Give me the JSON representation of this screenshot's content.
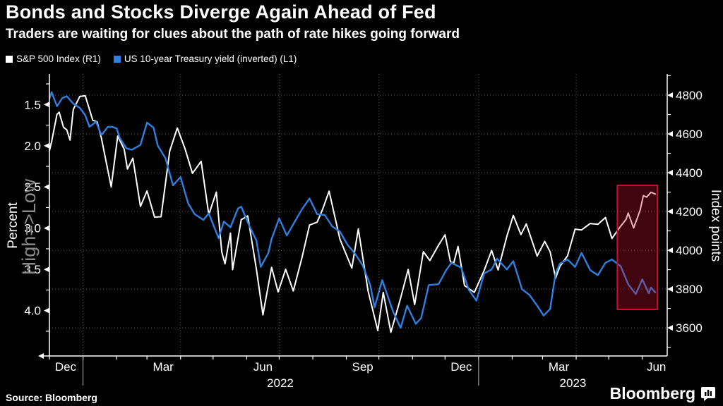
{
  "header": {
    "title": "Bonds and Stocks Diverge Again Ahead of Fed",
    "subtitle": "Traders are waiting for clues about the path of rate hikes going forward"
  },
  "legend": {
    "items": [
      {
        "label": "S&P 500 Index (R1)",
        "color": "#ffffff"
      },
      {
        "label": "US 10-year Treasury yield (inverted) (L1)",
        "color": "#2e7fe0"
      }
    ]
  },
  "chart_data": {
    "type": "line",
    "title": "Bonds and Stocks Diverge Again Ahead of Fed",
    "x_domain": {
      "start": "2021-12-01",
      "end": "2023-06-24"
    },
    "grid": {
      "color": "#5a5a5a",
      "horizontal_at_right_ticks": true,
      "vertical_dates": [
        "2022-01-01",
        "2022-04-01",
        "2022-07-01",
        "2022-10-01",
        "2023-01-01",
        "2023-04-01"
      ]
    },
    "left_axis": {
      "label": "Percent",
      "secondary_label": "High=>Low",
      "secondary_label_color": "#8a8a8a",
      "inverted": true,
      "unit": "percent",
      "value_at_top": 1.13,
      "value_at_bottom": 4.55,
      "major_ticks": [
        1.5,
        2.0,
        2.5,
        3.0,
        3.5,
        4.0
      ],
      "minor_ticks": [
        1.25,
        1.75,
        2.25,
        2.75,
        3.25,
        3.75,
        4.25
      ]
    },
    "right_axis": {
      "label": "Index points",
      "unit": "index points",
      "value_at_top": 4909,
      "value_at_bottom": 3455,
      "major_ticks": [
        4800,
        4600,
        4400,
        4200,
        4000,
        3800,
        3600
      ],
      "minor_ticks": [
        4900,
        4700,
        4500,
        4300,
        4100,
        3900,
        3700,
        3500
      ]
    },
    "x_axis": {
      "month_labels": [
        {
          "label": "Dec",
          "date": "2021-12-16"
        },
        {
          "label": "Mar",
          "date": "2022-03-16"
        },
        {
          "label": "Jun",
          "date": "2022-06-16"
        },
        {
          "label": "Sep",
          "date": "2022-09-16"
        },
        {
          "label": "Dec",
          "date": "2022-12-16"
        },
        {
          "label": "Mar",
          "date": "2023-03-16"
        },
        {
          "label": "Jun",
          "date": "2023-06-14"
        }
      ],
      "year_labels": [
        {
          "label": "2022",
          "date": "2022-07-02"
        },
        {
          "label": "2023",
          "date": "2023-03-29"
        }
      ],
      "year_divider_dates": [
        "2022-01-01",
        "2023-01-01"
      ]
    },
    "highlight": {
      "x_start": "2023-05-09",
      "x_end": "2023-06-15",
      "top_value": 4335,
      "bottom_value": 3695,
      "color": "#c8102e",
      "fill_opacity": 0.32
    },
    "series": [
      {
        "name": "S&P 500 Index",
        "axis": "right",
        "color": "#ffffff",
        "width": 2,
        "points": [
          [
            "2021-12-01",
            4513
          ],
          [
            "2021-12-03",
            4560
          ],
          [
            "2021-12-08",
            4701
          ],
          [
            "2021-12-10",
            4712
          ],
          [
            "2021-12-14",
            4634
          ],
          [
            "2021-12-17",
            4621
          ],
          [
            "2021-12-20",
            4568
          ],
          [
            "2021-12-23",
            4726
          ],
          [
            "2021-12-29",
            4793
          ],
          [
            "2022-01-03",
            4797
          ],
          [
            "2022-01-10",
            4670
          ],
          [
            "2022-01-14",
            4663
          ],
          [
            "2022-01-18",
            4577
          ],
          [
            "2022-01-24",
            4410
          ],
          [
            "2022-01-27",
            4327
          ],
          [
            "2022-02-02",
            4589
          ],
          [
            "2022-02-08",
            4521
          ],
          [
            "2022-02-11",
            4419
          ],
          [
            "2022-02-16",
            4475
          ],
          [
            "2022-02-23",
            4226
          ],
          [
            "2022-03-01",
            4306
          ],
          [
            "2022-03-08",
            4171
          ],
          [
            "2022-03-14",
            4173
          ],
          [
            "2022-03-22",
            4512
          ],
          [
            "2022-03-29",
            4631
          ],
          [
            "2022-04-05",
            4525
          ],
          [
            "2022-04-12",
            4397
          ],
          [
            "2022-04-20",
            4459
          ],
          [
            "2022-04-27",
            4184
          ],
          [
            "2022-05-04",
            4300
          ],
          [
            "2022-05-09",
            3991
          ],
          [
            "2022-05-12",
            3930
          ],
          [
            "2022-05-17",
            4089
          ],
          [
            "2022-05-19",
            3900
          ],
          [
            "2022-05-27",
            4158
          ],
          [
            "2022-06-02",
            4177
          ],
          [
            "2022-06-10",
            3901
          ],
          [
            "2022-06-16",
            3667
          ],
          [
            "2022-06-24",
            3912
          ],
          [
            "2022-06-30",
            3785
          ],
          [
            "2022-07-07",
            3902
          ],
          [
            "2022-07-14",
            3790
          ],
          [
            "2022-07-22",
            3962
          ],
          [
            "2022-07-29",
            4130
          ],
          [
            "2022-08-05",
            4145
          ],
          [
            "2022-08-10",
            4210
          ],
          [
            "2022-08-16",
            4305
          ],
          [
            "2022-08-26",
            4058
          ],
          [
            "2022-09-06",
            3908
          ],
          [
            "2022-09-12",
            4110
          ],
          [
            "2022-09-21",
            3790
          ],
          [
            "2022-09-30",
            3586
          ],
          [
            "2022-10-05",
            3783
          ],
          [
            "2022-10-12",
            3577
          ],
          [
            "2022-10-21",
            3753
          ],
          [
            "2022-10-28",
            3901
          ],
          [
            "2022-11-03",
            3720
          ],
          [
            "2022-11-11",
            3993
          ],
          [
            "2022-11-17",
            3947
          ],
          [
            "2022-11-25",
            4026
          ],
          [
            "2022-12-01",
            4080
          ],
          [
            "2022-12-06",
            3941
          ],
          [
            "2022-12-09",
            3934
          ],
          [
            "2022-12-13",
            4020
          ],
          [
            "2022-12-19",
            3818
          ],
          [
            "2022-12-28",
            3783
          ],
          [
            "2023-01-06",
            3895
          ],
          [
            "2023-01-13",
            3999
          ],
          [
            "2023-01-19",
            3898
          ],
          [
            "2023-01-27",
            4071
          ],
          [
            "2023-02-02",
            4180
          ],
          [
            "2023-02-09",
            4081
          ],
          [
            "2023-02-14",
            4136
          ],
          [
            "2023-02-24",
            3970
          ],
          [
            "2023-03-03",
            4046
          ],
          [
            "2023-03-08",
            3992
          ],
          [
            "2023-03-13",
            3856
          ],
          [
            "2023-03-17",
            3917
          ],
          [
            "2023-03-24",
            3971
          ],
          [
            "2023-03-31",
            4109
          ],
          [
            "2023-04-06",
            4105
          ],
          [
            "2023-04-14",
            4138
          ],
          [
            "2023-04-21",
            4134
          ],
          [
            "2023-04-28",
            4169
          ],
          [
            "2023-05-04",
            4061
          ],
          [
            "2023-05-12",
            4124
          ],
          [
            "2023-05-17",
            4159
          ],
          [
            "2023-05-19",
            4192
          ],
          [
            "2023-05-24",
            4115
          ],
          [
            "2023-05-30",
            4206
          ],
          [
            "2023-06-02",
            4282
          ],
          [
            "2023-06-05",
            4274
          ],
          [
            "2023-06-09",
            4299
          ],
          [
            "2023-06-13",
            4290
          ]
        ]
      },
      {
        "name": "US 10-year Treasury yield (inverted)",
        "axis": "left",
        "color": "#2e7fe0",
        "width": 2.4,
        "points": [
          [
            "2021-12-01",
            1.43
          ],
          [
            "2021-12-03",
            1.35
          ],
          [
            "2021-12-08",
            1.52
          ],
          [
            "2021-12-13",
            1.42
          ],
          [
            "2021-12-17",
            1.4
          ],
          [
            "2021-12-23",
            1.49
          ],
          [
            "2021-12-29",
            1.54
          ],
          [
            "2022-01-03",
            1.63
          ],
          [
            "2022-01-07",
            1.77
          ],
          [
            "2022-01-13",
            1.71
          ],
          [
            "2022-01-18",
            1.87
          ],
          [
            "2022-01-24",
            1.77
          ],
          [
            "2022-01-28",
            1.77
          ],
          [
            "2022-02-01",
            1.79
          ],
          [
            "2022-02-04",
            1.91
          ],
          [
            "2022-02-10",
            2.03
          ],
          [
            "2022-02-15",
            2.05
          ],
          [
            "2022-02-23",
            1.99
          ],
          [
            "2022-03-01",
            1.72
          ],
          [
            "2022-03-07",
            1.78
          ],
          [
            "2022-03-11",
            2.0
          ],
          [
            "2022-03-18",
            2.15
          ],
          [
            "2022-03-25",
            2.48
          ],
          [
            "2022-04-01",
            2.38
          ],
          [
            "2022-04-08",
            2.7
          ],
          [
            "2022-04-14",
            2.83
          ],
          [
            "2022-04-22",
            2.9
          ],
          [
            "2022-04-27",
            2.82
          ],
          [
            "2022-05-06",
            3.12
          ],
          [
            "2022-05-11",
            2.92
          ],
          [
            "2022-05-17",
            2.99
          ],
          [
            "2022-05-24",
            2.76
          ],
          [
            "2022-05-27",
            2.74
          ],
          [
            "2022-06-03",
            2.96
          ],
          [
            "2022-06-10",
            3.15
          ],
          [
            "2022-06-14",
            3.47
          ],
          [
            "2022-06-21",
            3.3
          ],
          [
            "2022-06-24",
            3.13
          ],
          [
            "2022-07-01",
            2.88
          ],
          [
            "2022-07-08",
            3.09
          ],
          [
            "2022-07-15",
            2.93
          ],
          [
            "2022-07-22",
            2.77
          ],
          [
            "2022-07-29",
            2.64
          ],
          [
            "2022-08-05",
            2.83
          ],
          [
            "2022-08-12",
            2.84
          ],
          [
            "2022-08-19",
            2.98
          ],
          [
            "2022-08-26",
            3.04
          ],
          [
            "2022-09-02",
            3.2
          ],
          [
            "2022-09-09",
            3.31
          ],
          [
            "2022-09-16",
            3.45
          ],
          [
            "2022-09-23",
            3.69
          ],
          [
            "2022-09-27",
            3.96
          ],
          [
            "2022-10-04",
            3.63
          ],
          [
            "2022-10-14",
            4.01
          ],
          [
            "2022-10-21",
            4.21
          ],
          [
            "2022-10-27",
            3.94
          ],
          [
            "2022-11-04",
            4.16
          ],
          [
            "2022-11-09",
            4.09
          ],
          [
            "2022-11-16",
            3.69
          ],
          [
            "2022-11-25",
            3.68
          ],
          [
            "2022-12-02",
            3.51
          ],
          [
            "2022-12-07",
            3.42
          ],
          [
            "2022-12-16",
            3.48
          ],
          [
            "2022-12-23",
            3.75
          ],
          [
            "2022-12-30",
            3.88
          ],
          [
            "2023-01-06",
            3.55
          ],
          [
            "2023-01-13",
            3.5
          ],
          [
            "2023-01-18",
            3.37
          ],
          [
            "2023-01-27",
            3.5
          ],
          [
            "2023-02-02",
            3.4
          ],
          [
            "2023-02-10",
            3.74
          ],
          [
            "2023-02-17",
            3.81
          ],
          [
            "2023-02-24",
            3.94
          ],
          [
            "2023-03-02",
            4.06
          ],
          [
            "2023-03-08",
            3.98
          ],
          [
            "2023-03-13",
            3.55
          ],
          [
            "2023-03-17",
            3.43
          ],
          [
            "2023-03-24",
            3.38
          ],
          [
            "2023-03-31",
            3.47
          ],
          [
            "2023-04-06",
            3.3
          ],
          [
            "2023-04-14",
            3.51
          ],
          [
            "2023-04-21",
            3.57
          ],
          [
            "2023-04-28",
            3.42
          ],
          [
            "2023-05-04",
            3.38
          ],
          [
            "2023-05-12",
            3.46
          ],
          [
            "2023-05-19",
            3.68
          ],
          [
            "2023-05-26",
            3.8
          ],
          [
            "2023-06-01",
            3.62
          ],
          [
            "2023-06-07",
            3.79
          ],
          [
            "2023-06-09",
            3.72
          ],
          [
            "2023-06-13",
            3.78
          ]
        ]
      }
    ]
  },
  "footer": {
    "source": "Source: Bloomberg",
    "brand": "Bloomberg"
  }
}
